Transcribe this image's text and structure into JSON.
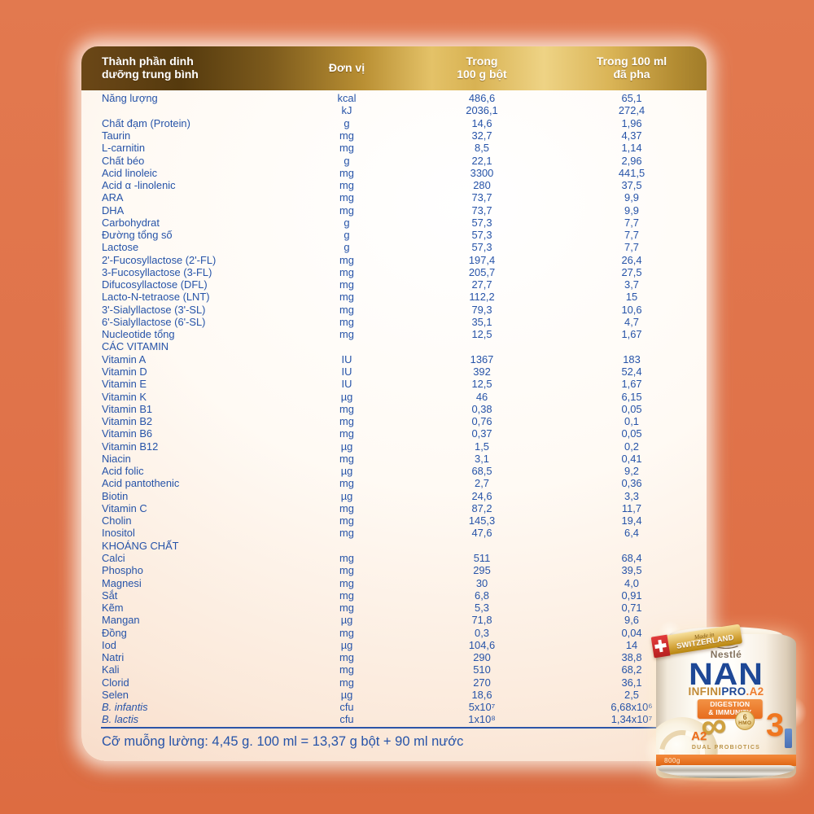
{
  "colors": {
    "background_orange": "#E0734A",
    "header_gold": "#D8B253",
    "table_text_blue": "#2653A8",
    "nan_blue": "#1E4896",
    "claim_orange": "#EE7D2E"
  },
  "table": {
    "header": {
      "nutrient": "Thành phần dinh\ndưỡng trung bình",
      "unit": "Đơn vị",
      "per_100g": "Trong\n100 g bột",
      "per_100ml": "Trong 100 ml\nđã pha"
    },
    "rows": [
      {
        "n": "Năng lượng",
        "u": "kcal",
        "a": "486,6",
        "b": "65,1"
      },
      {
        "n": "",
        "u": "kJ",
        "a": "2036,1",
        "b": "272,4"
      },
      {
        "n": "Chất đạm (Protein)",
        "u": "g",
        "a": "14,6",
        "b": "1,96"
      },
      {
        "n": "Taurin",
        "u": "mg",
        "a": "32,7",
        "b": "4,37"
      },
      {
        "n": "L-carnitin",
        "u": "mg",
        "a": "8,5",
        "b": "1,14"
      },
      {
        "n": "Chất béo",
        "u": "g",
        "a": "22,1",
        "b": "2,96"
      },
      {
        "n": "Acid linoleic",
        "u": "mg",
        "a": "3300",
        "b": "441,5"
      },
      {
        "n": "Acid α -linolenic",
        "u": "mg",
        "a": "280",
        "b": "37,5"
      },
      {
        "n": "ARA",
        "u": "mg",
        "a": "73,7",
        "b": "9,9"
      },
      {
        "n": "DHA",
        "u": "mg",
        "a": "73,7",
        "b": "9,9"
      },
      {
        "n": "Carbohydrat",
        "u": "g",
        "a": "57,3",
        "b": "7,7"
      },
      {
        "n": "Đường tổng số",
        "u": "g",
        "a": "57,3",
        "b": "7,7"
      },
      {
        "n": "Lactose",
        "u": "g",
        "a": "57,3",
        "b": "7,7"
      },
      {
        "n": "2'-Fucosyllactose (2'-FL)",
        "u": "mg",
        "a": "197,4",
        "b": "26,4"
      },
      {
        "n": "3-Fucosyllactose (3-FL)",
        "u": "mg",
        "a": "205,7",
        "b": "27,5"
      },
      {
        "n": "Difucosyllactose (DFL)",
        "u": "mg",
        "a": "27,7",
        "b": "3,7"
      },
      {
        "n": "Lacto-N-tetraose (LNT)",
        "u": "mg",
        "a": "112,2",
        "b": "15"
      },
      {
        "n": "3'-Sialyllactose (3'-SL)",
        "u": "mg",
        "a": "79,3",
        "b": "10,6"
      },
      {
        "n": "6'-Sialyllactose (6'-SL)",
        "u": "mg",
        "a": "35,1",
        "b": "4,7"
      },
      {
        "n": "Nucleotide tổng",
        "u": "mg",
        "a": "12,5",
        "b": "1,67"
      },
      {
        "n": "CÁC VITAMIN",
        "section": true
      },
      {
        "n": "Vitamin A",
        "u": "IU",
        "a": "1367",
        "b": "183"
      },
      {
        "n": "Vitamin D",
        "u": "IU",
        "a": "392",
        "b": "52,4"
      },
      {
        "n": "Vitamin E",
        "u": "IU",
        "a": "12,5",
        "b": "1,67"
      },
      {
        "n": "Vitamin K",
        "u": "µg",
        "a": "46",
        "b": "6,15"
      },
      {
        "n": "Vitamin B1",
        "u": "mg",
        "a": "0,38",
        "b": "0,05"
      },
      {
        "n": "Vitamin B2",
        "u": "mg",
        "a": "0,76",
        "b": "0,1"
      },
      {
        "n": "Vitamin B6",
        "u": "mg",
        "a": "0,37",
        "b": "0,05"
      },
      {
        "n": "Vitamin B12",
        "u": "µg",
        "a": "1,5",
        "b": "0,2"
      },
      {
        "n": "Niacin",
        "u": "mg",
        "a": "3,1",
        "b": "0,41"
      },
      {
        "n": "Acid folic",
        "u": "µg",
        "a": "68,5",
        "b": "9,2"
      },
      {
        "n": "Acid pantothenic",
        "u": "mg",
        "a": "2,7",
        "b": "0,36"
      },
      {
        "n": "Biotin",
        "u": "µg",
        "a": "24,6",
        "b": "3,3"
      },
      {
        "n": "Vitamin C",
        "u": "mg",
        "a": "87,2",
        "b": "11,7"
      },
      {
        "n": "Cholin",
        "u": "mg",
        "a": "145,3",
        "b": "19,4"
      },
      {
        "n": "Inositol",
        "u": "mg",
        "a": "47,6",
        "b": "6,4"
      },
      {
        "n": "KHOÁNG CHẤT",
        "section": true
      },
      {
        "n": "Calci",
        "u": "mg",
        "a": "511",
        "b": "68,4"
      },
      {
        "n": "Phospho",
        "u": "mg",
        "a": "295",
        "b": "39,5"
      },
      {
        "n": "Magnesi",
        "u": "mg",
        "a": "30",
        "b": "4,0"
      },
      {
        "n": "Sắt",
        "u": "mg",
        "a": "6,8",
        "b": "0,91"
      },
      {
        "n": "Kẽm",
        "u": "mg",
        "a": "5,3",
        "b": "0,71"
      },
      {
        "n": "Mangan",
        "u": "µg",
        "a": "71,8",
        "b": "9,6"
      },
      {
        "n": "Đồng",
        "u": "mg",
        "a": "0,3",
        "b": "0,04"
      },
      {
        "n": "Iod",
        "u": "µg",
        "a": "104,6",
        "b": "14"
      },
      {
        "n": "Natri",
        "u": "mg",
        "a": "290",
        "b": "38,8"
      },
      {
        "n": "Kali",
        "u": "mg",
        "a": "510",
        "b": "68,2"
      },
      {
        "n": "Clorid",
        "u": "mg",
        "a": "270",
        "b": "36,1"
      },
      {
        "n": "Selen",
        "u": "µg",
        "a": "18,6",
        "b": "2,5"
      },
      {
        "n": "B. infantis",
        "u": "cfu",
        "a": "5x10⁷",
        "b": "6,68x10⁶",
        "italic": true
      },
      {
        "n": "B. lactis",
        "u": "cfu",
        "a": "1x10⁸",
        "b": "1,34x10⁷",
        "italic": true
      }
    ],
    "footer_note": "Cỡ muỗng lường: 4,45 g. 100 ml = 13,37 g bột + 90 ml nước"
  },
  "can": {
    "origin_script": "Made in",
    "origin": "SWITZERLAND",
    "brand": "Nestlé",
    "product": "NAN",
    "range_infini": "INFINI",
    "range_pro": "PRO",
    "range_a2": ".A2",
    "claim1": "DIGESTION",
    "claim2": "& IMMUNITY",
    "a2": "A2",
    "infinity_glyph": "∞",
    "hmo_count": "6",
    "hmo": "HMO",
    "stage": "3",
    "dual": "DUAL PROBIOTICS",
    "weight": "800g"
  }
}
